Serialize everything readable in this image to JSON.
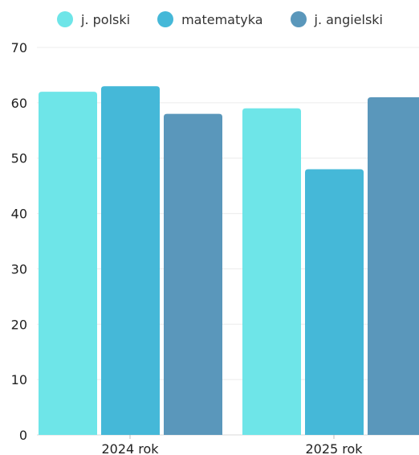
{
  "chart_data": {
    "type": "bar",
    "categories": [
      "2024 rok",
      "2025 rok"
    ],
    "series": [
      {
        "name": "j. polski",
        "values": [
          62,
          59
        ],
        "color": "#6ee5e8"
      },
      {
        "name": "matematyka",
        "values": [
          63,
          48
        ],
        "color": "#45b8d8"
      },
      {
        "name": "j. angielski",
        "values": [
          58,
          61
        ],
        "color": "#5a97bb"
      }
    ],
    "yticks": [
      0,
      10,
      20,
      30,
      40,
      50,
      60,
      70
    ],
    "ylim": [
      0,
      70
    ],
    "title": "",
    "xlabel": "",
    "ylabel": "",
    "grid": true,
    "legend_position": "top"
  }
}
